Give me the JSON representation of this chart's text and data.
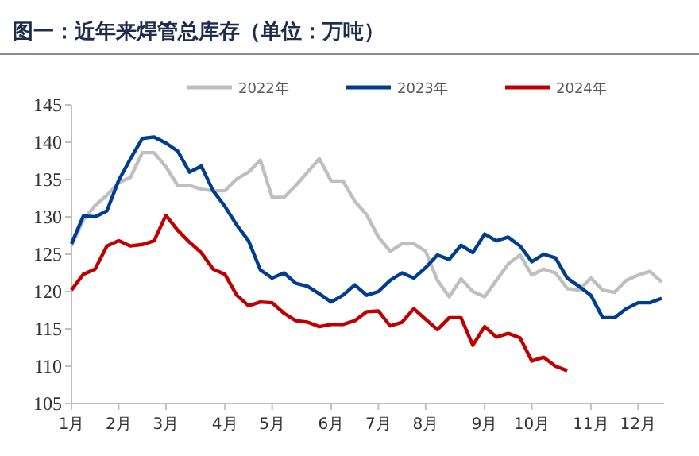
{
  "chart_data": {
    "type": "line",
    "title": "图一：近年来焊管总库存（单位：万吨）",
    "categories": [
      "1月",
      null,
      null,
      null,
      "2月",
      null,
      null,
      null,
      "3月",
      null,
      null,
      null,
      null,
      "4月",
      null,
      null,
      null,
      "5月",
      null,
      null,
      null,
      null,
      "6月",
      null,
      null,
      null,
      "7月",
      null,
      null,
      null,
      "8月",
      null,
      null,
      null,
      null,
      "9月",
      null,
      null,
      null,
      "10月",
      null,
      null,
      null,
      null,
      "11月",
      null,
      null,
      null,
      "12月",
      null,
      null
    ],
    "ylim": [
      105,
      145
    ],
    "yticks": [
      105,
      110,
      115,
      120,
      125,
      130,
      135,
      140,
      145
    ],
    "grid": false,
    "legend": "top",
    "marker": "none",
    "line_style": "solid",
    "series": [
      {
        "name": "2022年",
        "color": "#bfbfbf",
        "values": [
          126.1,
          129.6,
          131.5,
          132.9,
          134.6,
          135.3,
          138.6,
          138.6,
          136.7,
          134.2,
          134.2,
          133.7,
          133.5,
          133.5,
          135.1,
          136.0,
          137.6,
          132.6,
          132.6,
          134.2,
          136.0,
          137.8,
          134.8,
          134.8,
          132.1,
          130.3,
          127.3,
          125.4,
          126.4,
          126.4,
          125.4,
          121.5,
          119.3,
          121.7,
          120.0,
          119.3,
          121.5,
          123.7,
          124.9,
          122.2,
          123.0,
          122.5,
          120.4,
          120.2,
          121.8,
          120.2,
          119.9,
          121.5,
          122.2,
          122.7,
          121.3
        ]
      },
      {
        "name": "2023年",
        "color": "#003d8f",
        "values": [
          126.4,
          130.1,
          130.0,
          130.8,
          134.9,
          137.8,
          140.5,
          140.7,
          139.9,
          138.8,
          136.0,
          136.8,
          133.5,
          131.4,
          128.9,
          126.8,
          122.9,
          121.8,
          122.5,
          121.1,
          120.7,
          119.7,
          118.6,
          119.5,
          120.9,
          119.5,
          120.0,
          121.5,
          122.5,
          121.8,
          123.2,
          124.9,
          124.3,
          126.2,
          125.2,
          127.7,
          126.8,
          127.3,
          126.1,
          124.0,
          125.0,
          124.5,
          121.8,
          120.7,
          119.5,
          116.5,
          116.5,
          117.7,
          118.5,
          118.5,
          119.1
        ]
      },
      {
        "name": "2024年",
        "color": "#c00000",
        "values": [
          120.2,
          122.3,
          123.0,
          126.1,
          126.8,
          126.1,
          126.3,
          126.8,
          130.2,
          128.2,
          126.6,
          125.2,
          123.0,
          122.3,
          119.5,
          118.1,
          118.6,
          118.5,
          117.1,
          116.1,
          115.9,
          115.3,
          115.6,
          115.6,
          116.1,
          117.3,
          117.4,
          115.4,
          115.9,
          117.7,
          116.3,
          114.9,
          116.5,
          116.5,
          112.8,
          115.3,
          113.9,
          114.4,
          113.8,
          110.7,
          111.2,
          110.0,
          109.4,
          null,
          null,
          null,
          null,
          null,
          null,
          null,
          null
        ]
      }
    ]
  }
}
